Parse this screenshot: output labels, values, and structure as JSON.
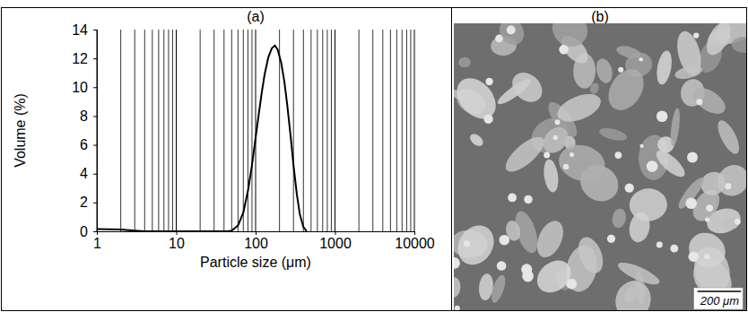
{
  "chart_data": {
    "type": "line",
    "title": "(a)",
    "xlabel": "Particle size (μm)",
    "ylabel": "Volume (%)",
    "x": [
      1,
      2,
      3,
      4,
      45,
      50,
      60,
      70,
      80,
      90,
      100,
      110,
      120,
      130,
      145,
      160,
      175,
      190,
      210,
      230,
      250,
      275,
      300,
      330,
      360,
      400,
      440
    ],
    "values": [
      0.15,
      0.12,
      0.05,
      0,
      0,
      0.05,
      0.4,
      1.3,
      2.8,
      4.6,
      6.5,
      8.2,
      9.7,
      10.9,
      12.1,
      12.7,
      12.9,
      12.6,
      11.7,
      10.4,
      8.8,
      6.7,
      4.6,
      2.6,
      1.2,
      0.3,
      0
    ],
    "color": "#000000",
    "log": "x",
    "grid": "x",
    "xlim": [
      1,
      10000
    ],
    "xticks": [
      1,
      10,
      100,
      1000,
      10000
    ],
    "ylim": [
      0,
      14
    ],
    "yticks": [
      0,
      2,
      4,
      6,
      8,
      10,
      12,
      14
    ]
  },
  "image": {
    "title": "(b)",
    "scale_bar": "200 μm"
  }
}
